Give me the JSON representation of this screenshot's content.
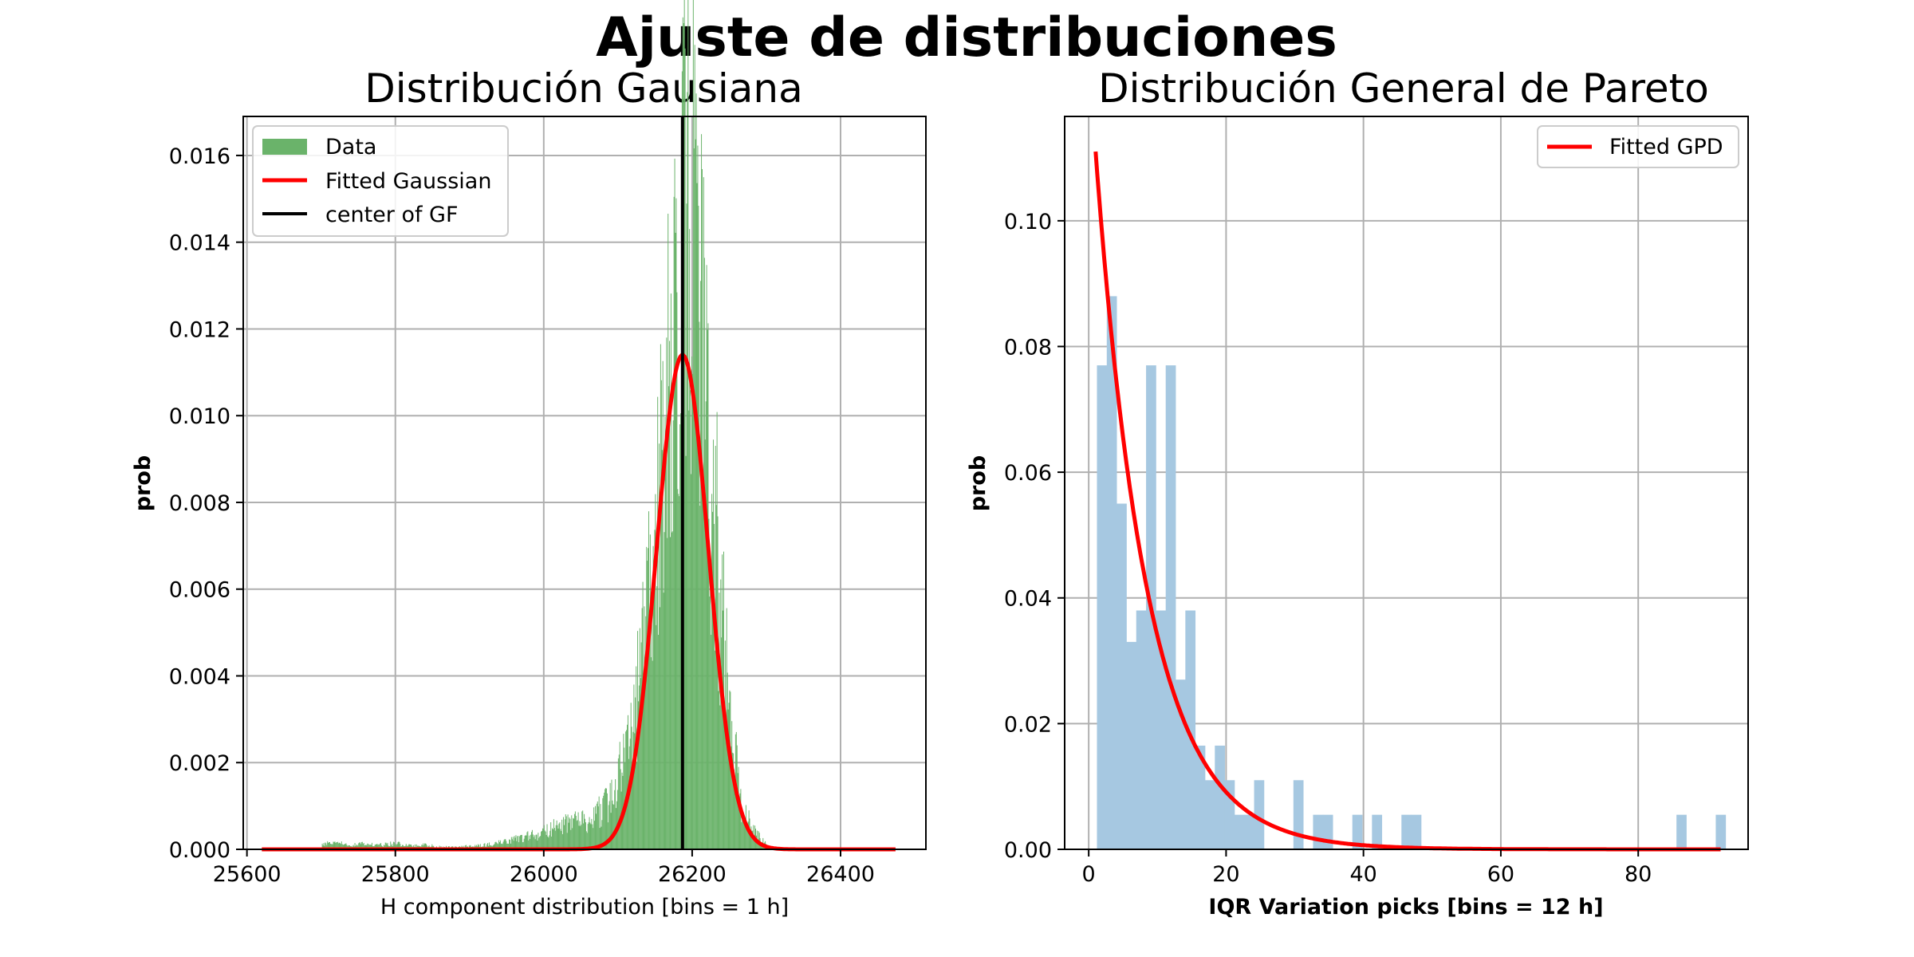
{
  "figure": {
    "title": "Ajuste de distribuciones"
  },
  "chart_data": [
    {
      "type": "histogram",
      "title": "Distribución Gausiana",
      "xlabel": "H component distribution [bins = 1 h]",
      "ylabel": "prob",
      "xlim": [
        25595,
        26515
      ],
      "ylim": [
        0,
        0.0169
      ],
      "xticks": [
        25600,
        25800,
        26000,
        26200,
        26400
      ],
      "xtick_labels": [
        "25600",
        "25800",
        "26000",
        "26200",
        "26400"
      ],
      "yticks": [
        0,
        0.002,
        0.004,
        0.006,
        0.008,
        0.01,
        0.012,
        0.014,
        0.016
      ],
      "ytick_labels": [
        "0.000",
        "0.002",
        "0.004",
        "0.006",
        "0.008",
        "0.010",
        "0.012",
        "0.014",
        "0.016"
      ],
      "grid": true,
      "legend_position": "upper-left",
      "colors": {
        "data": "#6ab36a",
        "fit": "#ff0000",
        "center": "#000000"
      },
      "legend": [
        "Data",
        "Fitted Gaussian",
        "center of GF"
      ],
      "gaussian_fit": {
        "mean": 26187,
        "peak": 0.0114,
        "x_start": 25620,
        "x_end": 26475
      },
      "center_of_gf": 26187,
      "histogram": {
        "x": [
          25700,
          25720,
          25740,
          25760,
          25780,
          25800,
          25820,
          25840,
          25860,
          25880,
          25900,
          25920,
          25940,
          25960,
          25980,
          26000,
          26020,
          26040,
          26060,
          26080,
          26090,
          26100,
          26110,
          26120,
          26125,
          26130,
          26135,
          26140,
          26145,
          26150,
          26155,
          26160,
          26165,
          26170,
          26175,
          26180,
          26185,
          26190,
          26195,
          26200,
          26205,
          26210,
          26215,
          26220,
          26225,
          26230,
          26235,
          26240,
          26245,
          26250,
          26255,
          26260,
          26265,
          26270,
          26280,
          26290,
          26300
        ],
        "y": [
          0.00012,
          0.00015,
          0.0001,
          0.00013,
          0.0001,
          0.00014,
          8e-05,
          0.0001,
          6e-05,
          5e-05,
          8e-05,
          0.0001,
          0.00015,
          0.00022,
          0.0003,
          0.0004,
          0.00055,
          0.0006,
          0.0007,
          0.00095,
          0.0012,
          0.0017,
          0.0019,
          0.0027,
          0.0035,
          0.0042,
          0.0046,
          0.0058,
          0.0068,
          0.0072,
          0.008,
          0.0095,
          0.0105,
          0.0125,
          0.0138,
          0.0142,
          0.0145,
          0.0148,
          0.0152,
          0.0158,
          0.0145,
          0.0125,
          0.011,
          0.0098,
          0.0088,
          0.0078,
          0.0065,
          0.0052,
          0.0042,
          0.0033,
          0.0025,
          0.0018,
          0.0012,
          0.00085,
          0.0005,
          0.00028,
          0.0001
        ]
      }
    },
    {
      "type": "histogram",
      "title": "Distribución General de Pareto",
      "xlabel": "IQR Variation picks [bins = 12 h]",
      "ylabel": "prob",
      "xlim": [
        -3.5,
        96
      ],
      "ylim": [
        0,
        0.1166
      ],
      "xticks": [
        0,
        20,
        40,
        60,
        80
      ],
      "xtick_labels": [
        "0",
        "20",
        "40",
        "60",
        "80"
      ],
      "yticks": [
        0,
        0.02,
        0.04,
        0.06,
        0.08,
        0.1
      ],
      "ytick_labels": [
        "0.00",
        "0.02",
        "0.04",
        "0.06",
        "0.08",
        "0.10"
      ],
      "grid": true,
      "legend_position": "upper-right",
      "colors": {
        "data": "#a6c8e1",
        "fit": "#ff0000"
      },
      "legend": [
        "Fitted GPD"
      ],
      "gpd_fit": {
        "amplitude": 0.111,
        "x_start": 1,
        "x_end": 92,
        "decay": 7.6
      },
      "bin_width": 1.43,
      "histogram": {
        "x_left": [
          1.2,
          2.63,
          4.06,
          5.49,
          6.92,
          8.35,
          9.78,
          11.21,
          12.64,
          14.07,
          15.5,
          16.93,
          18.36,
          19.79,
          21.22,
          22.65,
          24.08,
          25.51,
          29.8,
          32.66,
          34.09,
          38.38,
          41.24,
          45.53,
          46.96,
          85.57,
          91.29
        ],
        "y": [
          0.077,
          0.088,
          0.055,
          0.033,
          0.038,
          0.077,
          0.038,
          0.077,
          0.027,
          0.038,
          0.0165,
          0.011,
          0.0165,
          0.011,
          0.0055,
          0.0055,
          0.011,
          0.0,
          0.011,
          0.0055,
          0.0055,
          0.0055,
          0.0055,
          0.0055,
          0.0055,
          0.0055,
          0.0055
        ]
      }
    }
  ]
}
